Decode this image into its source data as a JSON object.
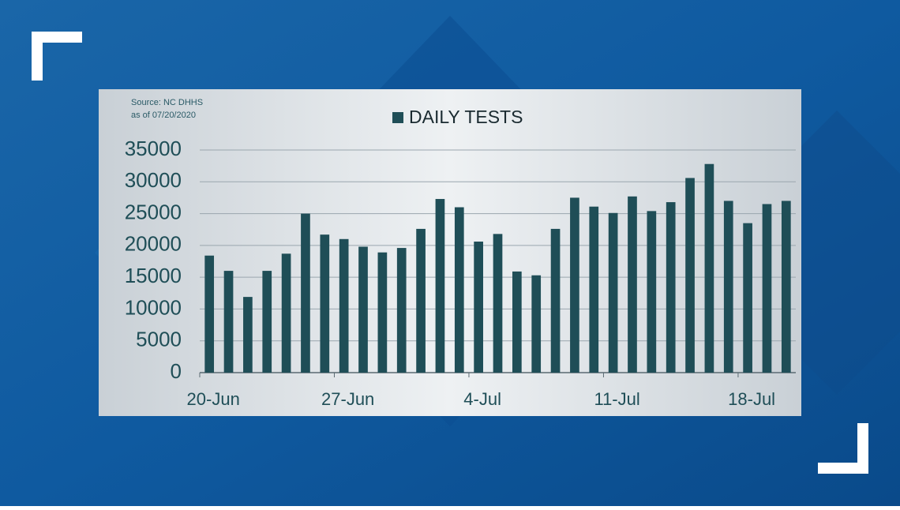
{
  "chart_data": {
    "type": "bar",
    "source": [
      "Source: NC DHHS",
      "as of 07/20/2020"
    ],
    "categories": [
      "20-Jun",
      null,
      null,
      null,
      null,
      null,
      null,
      "27-Jun",
      null,
      null,
      null,
      null,
      null,
      null,
      "4-Jul",
      null,
      null,
      null,
      null,
      null,
      null,
      "11-Jul",
      null,
      null,
      null,
      null,
      null,
      null,
      "18-Jul",
      null,
      null
    ],
    "series": [
      {
        "name": "DAILY TESTS",
        "color": "#1f4e57",
        "values": [
          18400,
          16000,
          11900,
          16000,
          18700,
          25000,
          21700,
          21000,
          19800,
          18900,
          19600,
          22600,
          27300,
          26000,
          20600,
          21800,
          15900,
          15300,
          22600,
          27500,
          26100,
          25100,
          27700,
          25400,
          26800,
          30600,
          32800,
          27000,
          23500,
          26500,
          27000
        ]
      }
    ],
    "ylim": [
      0,
      35000
    ],
    "yticks": [
      0,
      5000,
      10000,
      15000,
      20000,
      25000,
      30000,
      35000
    ],
    "grid": true,
    "legend": "top"
  }
}
